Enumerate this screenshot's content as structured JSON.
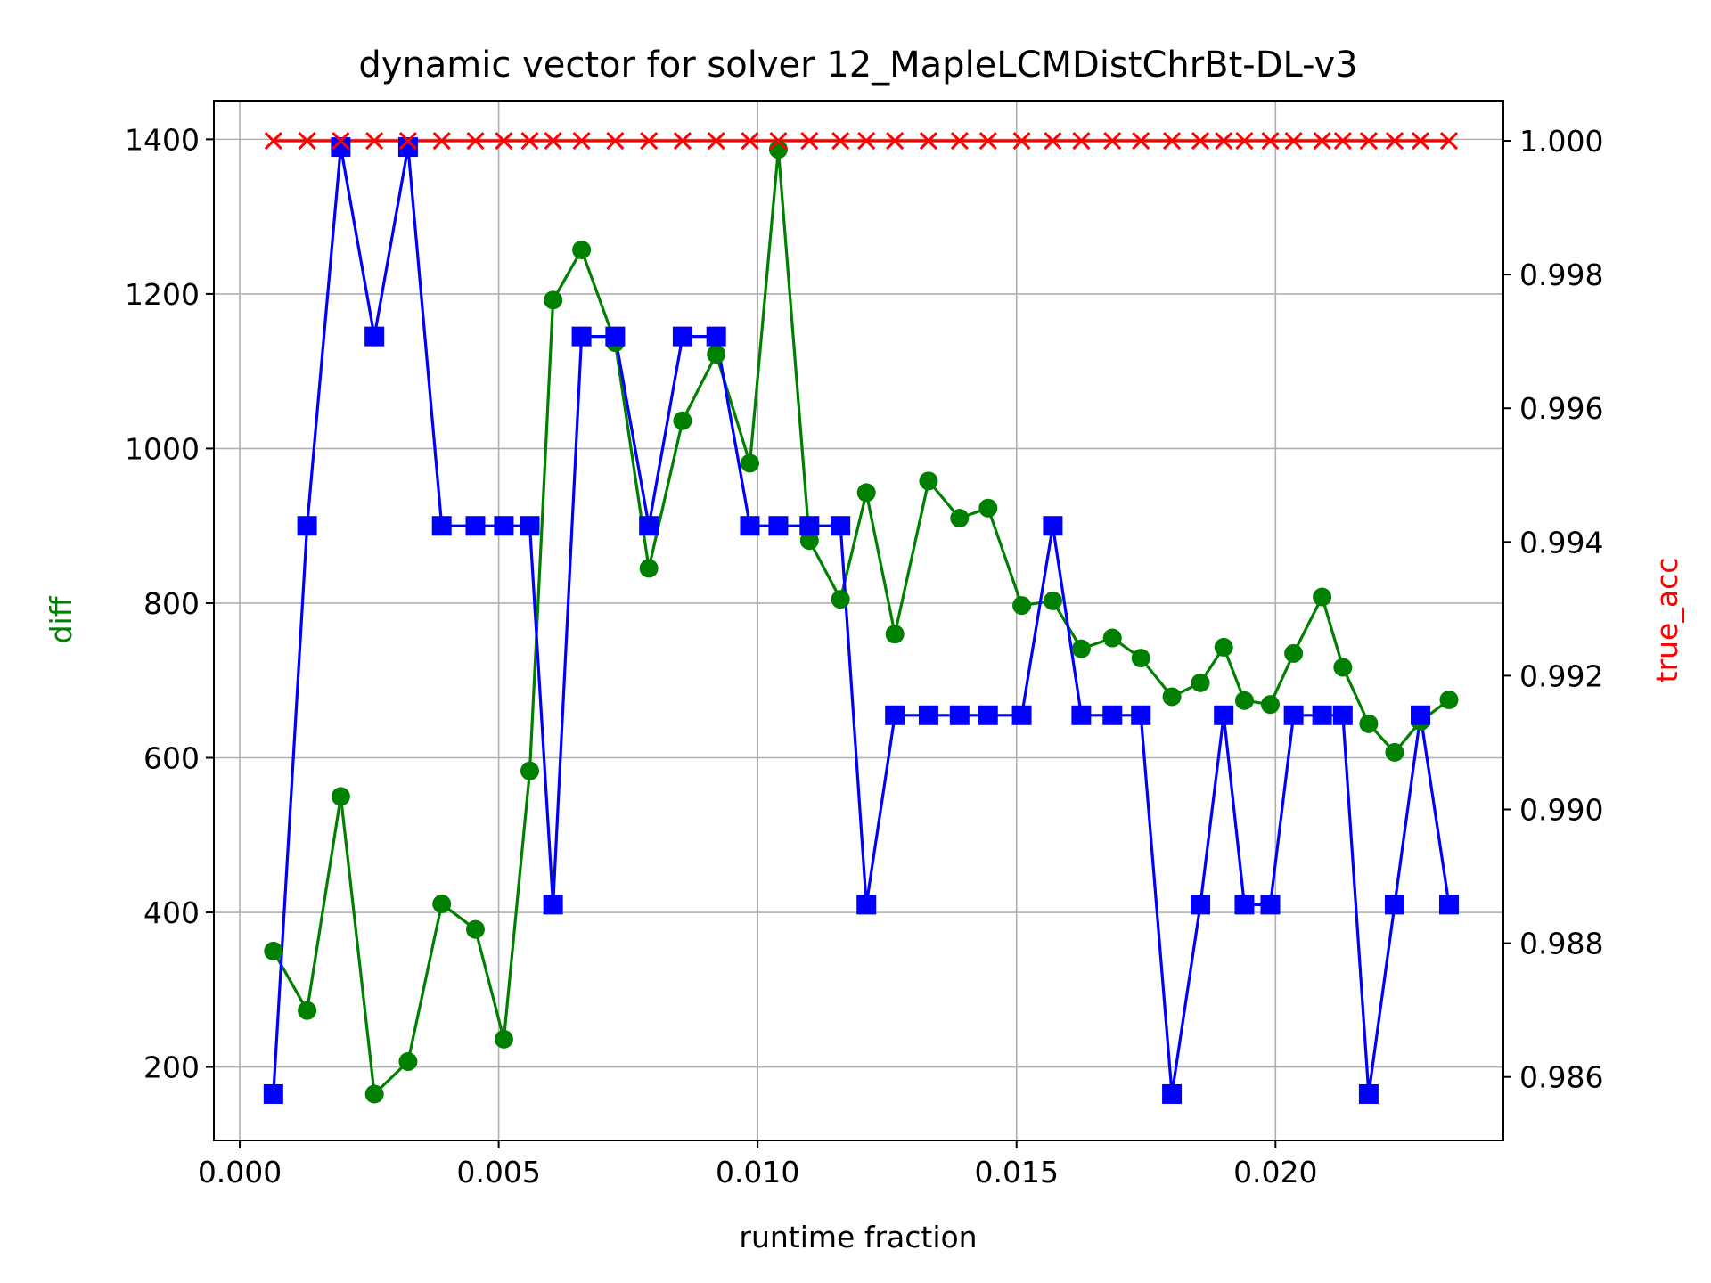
{
  "chart_data": {
    "type": "line",
    "title": "dynamic vector for solver 12_MapleLCMDistChrBt-DL-v3",
    "xlabel": "runtime fraction",
    "ylabel": "diff",
    "y2label": "true_acc",
    "xlim": [
      -0.0005,
      0.0244
    ],
    "ylim": [
      105,
      1450
    ],
    "y2lim": [
      0.98505,
      1.0006
    ],
    "grid": true,
    "x_ticks": [
      "0.000",
      "0.005",
      "0.010",
      "0.015",
      "0.020"
    ],
    "y_ticks": [
      "200",
      "400",
      "600",
      "800",
      "1000",
      "1200",
      "1400"
    ],
    "y2_ticks": [
      "0.986",
      "0.988",
      "0.990",
      "0.992",
      "0.994",
      "0.996",
      "0.998",
      "1.000"
    ],
    "colors": {
      "diff": "#008000",
      "blue": "#0000ff",
      "true_acc": "#ff0000",
      "ylabel": "#008000",
      "y2label": "#ff0000"
    },
    "x": [
      0.00065,
      0.0013,
      0.00195,
      0.0026,
      0.00325,
      0.0039,
      0.00455,
      0.0051,
      0.0056,
      0.00605,
      0.0066,
      0.00725,
      0.0079,
      0.00855,
      0.0092,
      0.00985,
      0.0104,
      0.011,
      0.0116,
      0.0121,
      0.01265,
      0.0133,
      0.0139,
      0.01445,
      0.0151,
      0.0157,
      0.01625,
      0.01685,
      0.0174,
      0.018,
      0.01855,
      0.019,
      0.0194,
      0.0199,
      0.02035,
      0.0209,
      0.0213,
      0.0218,
      0.0223,
      0.0228,
      0.02335
    ],
    "series": [
      {
        "marker": "circle",
        "color": "#008000",
        "axis": "left",
        "values": [
          350,
          273,
          550,
          165,
          207,
          411,
          378,
          236,
          583,
          1192,
          1257,
          1137,
          845,
          1036,
          1122,
          981,
          1387,
          881,
          805,
          943,
          760,
          958,
          910,
          923,
          797,
          803,
          741,
          755,
          729,
          679,
          697,
          743,
          674,
          669,
          735,
          808,
          717,
          644,
          607,
          647,
          675
        ]
      },
      {
        "marker": "square",
        "color": "#0000ff",
        "axis": "left",
        "values": [
          165,
          900,
          1390,
          1145,
          1390,
          900,
          900,
          900,
          900,
          410,
          1145,
          1145,
          900,
          1145,
          1145,
          900,
          900,
          900,
          900,
          410,
          655,
          655,
          655,
          655,
          655,
          900,
          655,
          655,
          655,
          165,
          410,
          655,
          410,
          410,
          655,
          655,
          655,
          165,
          410,
          655,
          410
        ]
      },
      {
        "marker": "x",
        "color": "#ff0000",
        "axis": "right",
        "x": [
          0.00065,
          0.0013,
          0.00195,
          0.0026,
          0.00325,
          0.0039,
          0.00455,
          0.0051,
          0.0056,
          0.00605,
          0.0066,
          0.00725,
          0.0079,
          0.00855,
          0.0092,
          0.00985,
          0.0104,
          0.011,
          0.0116,
          0.0121,
          0.01265,
          0.0133,
          0.0139,
          0.01445,
          0.0151,
          0.0157,
          0.01625,
          0.01685,
          0.0174,
          0.018,
          0.01855,
          0.019,
          0.0194,
          0.0199,
          0.02035,
          0.0209,
          0.0213,
          0.0218,
          0.0223,
          0.0228,
          0.02335
        ],
        "values": [
          1,
          1,
          1,
          1,
          1,
          1,
          1,
          1,
          1,
          1,
          1,
          1,
          1,
          1,
          1,
          1,
          1,
          1,
          1,
          1,
          1,
          1,
          1,
          1,
          1,
          1,
          1,
          1,
          1,
          1,
          1,
          1,
          1,
          1,
          1,
          1,
          1,
          1,
          1,
          1,
          1
        ]
      }
    ]
  }
}
